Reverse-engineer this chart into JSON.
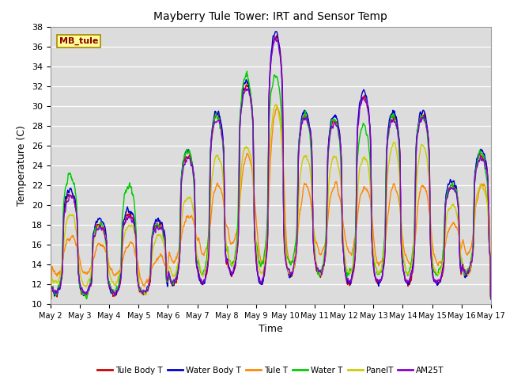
{
  "title": "Mayberry Tule Tower: IRT and Sensor Temp",
  "xlabel": "Time",
  "ylabel": "Temperature (C)",
  "ylim": [
    10,
    38
  ],
  "yticks": [
    10,
    12,
    14,
    16,
    18,
    20,
    22,
    24,
    26,
    28,
    30,
    32,
    34,
    36,
    38
  ],
  "x_labels": [
    "May 2",
    "May 3",
    "May 4",
    "May 5",
    "May 6",
    "May 7",
    "May 8",
    "May 9",
    "May 10",
    "May 11",
    "May 12",
    "May 13",
    "May 14",
    "May 15",
    "May 16",
    "May 17"
  ],
  "series_colors": [
    "#cc0000",
    "#0000cc",
    "#ff8800",
    "#00cc00",
    "#cccc00",
    "#8800cc"
  ],
  "series_names": [
    "Tule Body T",
    "Water Body T",
    "Tule T",
    "Water T",
    "PanelT",
    "AM25T"
  ],
  "background_color": "#dcdcdc",
  "annotation_text": "MB_tule",
  "annotation_bg": "#ffff99",
  "annotation_border": "#aa8800",
  "figsize": [
    6.4,
    4.8
  ],
  "dpi": 100
}
